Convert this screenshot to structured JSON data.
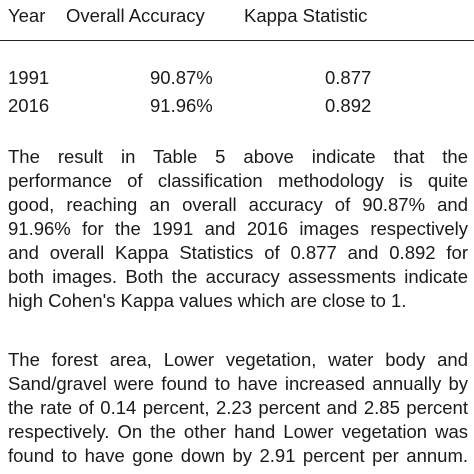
{
  "table": {
    "columns": [
      "Year",
      "Overall Accuracy",
      "Kappa Statistic"
    ],
    "rows": [
      {
        "year": "1991",
        "accuracy": "90.87%",
        "kappa": "0.877"
      },
      {
        "year": "2016",
        "accuracy": "91.96%",
        "kappa": "0.892"
      }
    ]
  },
  "paragraphs": [
    {
      "lines": [
        "The result in Table 5 above indicate that the",
        "performance of  classification methodology is quite",
        "good, reaching an overall accuracy of 90.87% and",
        "91.96% for the 1991 and 2016 images respectively",
        "and overall Kappa Statistics of 0.877 and 0.892 for",
        "both images. Both the accuracy assessments indicate",
        "high Cohen's Kappa values which are close to 1."
      ]
    },
    {
      "lines": [
        "The forest area, Lower vegetation, water body and",
        "Sand/gravel were found to have increased annually by",
        "the rate of 0.14 percent, 2.23 percent and 2.85 percent",
        "respectively. On the other hand Lower vegetation was",
        "found to have gone down by   2.91 percent per annum."
      ]
    }
  ]
}
